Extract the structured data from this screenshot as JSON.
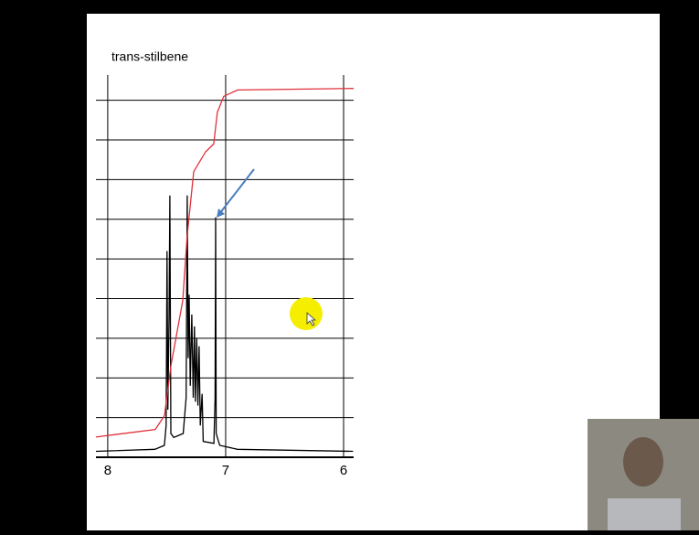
{
  "chart_data": {
    "type": "line",
    "title": "trans-stilbene",
    "xlim": [
      8.1,
      5.915
    ],
    "xticks": [
      8,
      7,
      6
    ],
    "ylim": [
      0,
      9.5
    ],
    "yticks": [
      1,
      2,
      3,
      4,
      5,
      6,
      7,
      8,
      9
    ],
    "grid": true,
    "series": [
      {
        "color": "#000000",
        "x": [
          8.1,
          7.6,
          7.52,
          7.505,
          7.497,
          7.49,
          7.48,
          7.473,
          7.465,
          7.44,
          7.36,
          7.335,
          7.326,
          7.318,
          7.31,
          7.3,
          7.287,
          7.275,
          7.265,
          7.256,
          7.245,
          7.235,
          7.225,
          7.215,
          7.2,
          7.19,
          7.1,
          7.09,
          7.085,
          7.08,
          7.05,
          6.9,
          5.92
        ],
        "values": [
          0.15,
          0.2,
          0.3,
          0.8,
          5.2,
          1.2,
          3.5,
          6.6,
          0.6,
          0.5,
          0.6,
          1.5,
          6.6,
          2.5,
          4.1,
          1.8,
          3.6,
          1.5,
          3.3,
          1.4,
          3.0,
          1.3,
          2.8,
          0.8,
          1.6,
          0.4,
          0.35,
          1.5,
          6.05,
          0.6,
          0.3,
          0.2,
          0.15
        ]
      },
      {
        "color": "#e0303a",
        "x": [
          8.101,
          7.597,
          7.519,
          7.465,
          7.364,
          7.326,
          7.271,
          7.171,
          7.101,
          7.07,
          7.016,
          6.899,
          5.915
        ],
        "values": [
          0.51,
          0.7,
          1.05,
          2.3,
          3.95,
          5.6,
          7.2,
          7.7,
          7.9,
          8.7,
          9.1,
          9.26,
          9.3
        ]
      }
    ]
  }
}
